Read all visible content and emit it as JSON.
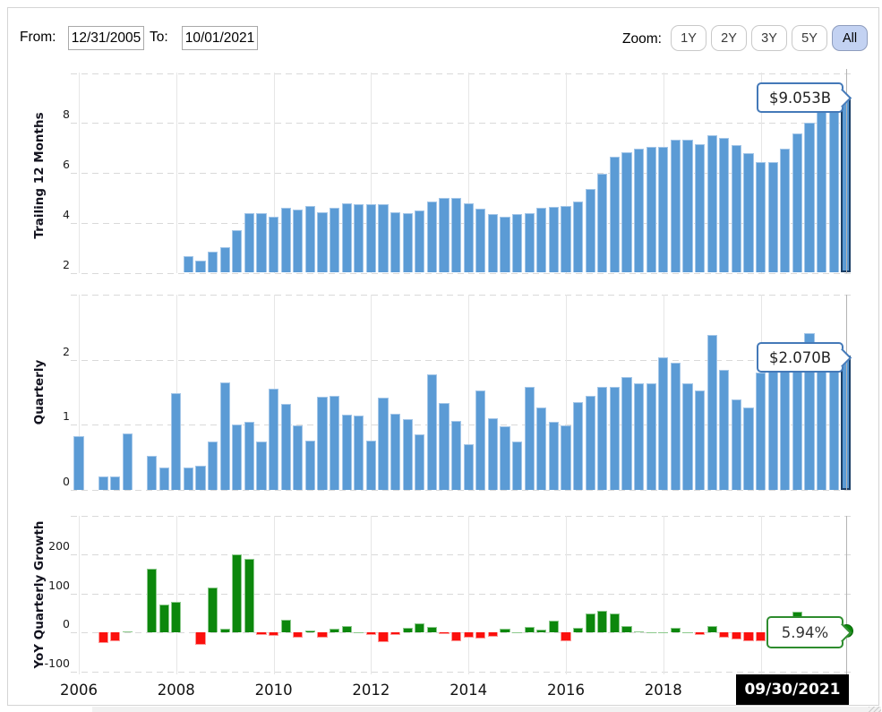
{
  "controls": {
    "from_label": "From:",
    "from_value": "12/31/2005",
    "to_label": "To:",
    "to_value": "10/01/2021",
    "zoom_label": "Zoom:",
    "zoom_buttons": [
      "1Y",
      "2Y",
      "3Y",
      "5Y",
      "All"
    ],
    "active_zoom": "All"
  },
  "chart_data": {
    "type": "bar",
    "frequency": "quarterly",
    "x_range": [
      "12/31/2005",
      "09/30/2021"
    ],
    "hover_date": "09/30/2021",
    "x_axis": {
      "tick_labels": [
        "2006",
        "2008",
        "2010",
        "2012",
        "2014",
        "2016",
        "2018"
      ]
    },
    "panels": [
      {
        "name": "trailing-12-months",
        "ylabel": "Trailing 12 Months",
        "unit_hint": "$ billions",
        "yticks": [
          "8",
          "6",
          "4",
          "2"
        ],
        "ylim": [
          2,
          10
        ],
        "hover_value": "$9.053B",
        "bar_color": "#5b9bd5",
        "values": [
          null,
          null,
          null,
          null,
          null,
          null,
          null,
          null,
          null,
          2.65,
          2.5,
          2.83,
          3.04,
          3.71,
          4.38,
          4.38,
          4.26,
          4.62,
          4.54,
          4.66,
          4.44,
          4.6,
          4.8,
          4.75,
          4.75,
          4.75,
          4.43,
          4.37,
          4.49,
          4.85,
          4.99,
          4.99,
          4.8,
          4.57,
          4.35,
          4.25,
          4.35,
          4.39,
          4.59,
          4.63,
          4.67,
          4.87,
          5.35,
          5.97,
          6.64,
          6.83,
          6.99,
          7.03,
          7.03,
          7.33,
          7.33,
          7.17,
          7.51,
          7.39,
          7.12,
          6.81,
          6.45,
          6.45,
          6.97,
          7.59,
          8.02,
          8.43,
          8.43,
          9.053
        ]
      },
      {
        "name": "quarterly",
        "ylabel": "Quarterly",
        "unit_hint": "$ billions",
        "yticks": [
          "2",
          "1",
          "0"
        ],
        "ylim": [
          0,
          3
        ],
        "hover_value": "$2.070B",
        "bar_color": "#5b9bd5",
        "values": [
          0.82,
          null,
          0.21,
          0.21,
          0.86,
          null,
          0.52,
          0.34,
          1.48,
          0.35,
          0.37,
          0.74,
          1.65,
          1.0,
          1.05,
          0.74,
          1.56,
          1.32,
          0.99,
          0.76,
          1.43,
          1.45,
          1.15,
          1.14,
          0.76,
          1.42,
          1.17,
          1.08,
          0.85,
          1.77,
          1.33,
          1.06,
          0.7,
          1.52,
          1.1,
          0.97,
          0.74,
          1.58,
          1.27,
          1.05,
          0.99,
          1.35,
          1.45,
          1.58,
          1.58,
          1.73,
          1.64,
          1.63,
          2.03,
          1.95,
          1.64,
          1.52,
          2.38,
          1.84,
          1.39,
          1.27,
          1.8,
          1.9,
          1.95,
          1.96,
          2.41,
          2.1,
          2.15,
          2.07
        ]
      },
      {
        "name": "yoy-quarterly-growth",
        "ylabel": "YoY Quarterly Growth",
        "unit_hint": "percent",
        "yticks": [
          "200",
          "100",
          "0",
          "-100"
        ],
        "ylim": [
          -107,
          300
        ],
        "hover_value": "5.94%",
        "positive_color": "#0c870c",
        "negative_color": "#fb100d",
        "values": [
          null,
          null,
          -27,
          -22,
          3,
          null,
          163,
          73,
          79,
          null,
          -32,
          116,
          11,
          200,
          190,
          -5,
          -9,
          33,
          -14,
          6,
          -12,
          11,
          18,
          2,
          -7,
          -24,
          -7,
          13,
          25,
          14,
          -4,
          -23,
          -14,
          -16,
          -10,
          9,
          2,
          14,
          7,
          31,
          -21,
          13,
          50,
          57,
          49,
          18,
          3,
          2,
          2,
          13,
          2,
          -5,
          17,
          -14,
          -17,
          -21,
          -22,
          -2,
          33,
          54,
          34,
          4,
          5,
          5.94
        ]
      }
    ]
  },
  "colors": {
    "bar_blue": "#5b9bd5",
    "positive_green": "#0c870c",
    "negative_red": "#fb100d",
    "highlight_navy": "#1b3f66",
    "tooltip_blue_border": "#4479b8",
    "tooltip_green_border": "#2e8c2e",
    "date_tooltip_bg": "#000000",
    "active_zoom_bg": "#c3d2f2"
  }
}
